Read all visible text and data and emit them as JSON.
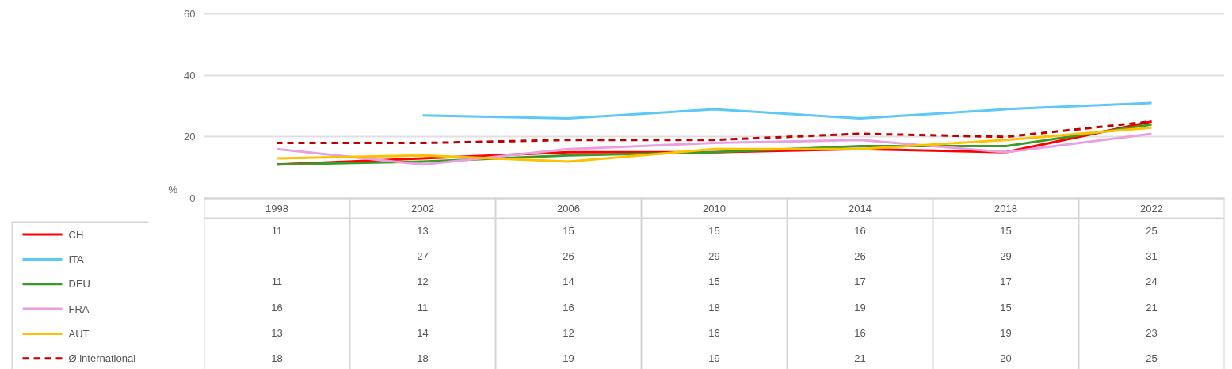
{
  "chart_data": {
    "type": "line",
    "ylabel": "%",
    "categories": [
      "1998",
      "2002",
      "2006",
      "2010",
      "2014",
      "2018",
      "2022"
    ],
    "ylim": [
      0,
      60
    ],
    "yticks": [
      0,
      20,
      40,
      60
    ],
    "grid": "y",
    "legend": "bottom",
    "data_labels": true,
    "marker": "none",
    "series": [
      {
        "name": "CH",
        "color": "#ff0000",
        "values": [
          11,
          13,
          15,
          15,
          16,
          15,
          25
        ]
      },
      {
        "name": "ITA",
        "color": "#5bc8f5",
        "values": [
          null,
          27,
          26,
          29,
          26,
          29,
          31
        ]
      },
      {
        "name": "DEU",
        "color": "#3a9a2a",
        "values": [
          11,
          12,
          14,
          15,
          17,
          17,
          24
        ]
      },
      {
        "name": "FRA",
        "color": "#e9a0e0",
        "values": [
          16,
          11,
          16,
          18,
          19,
          15,
          21
        ]
      },
      {
        "name": "AUT",
        "color": "#ffc000",
        "values": [
          13,
          14,
          12,
          16,
          16,
          19,
          23
        ]
      },
      {
        "name": "Ø international",
        "color": "#c00000",
        "values": [
          18,
          18,
          19,
          19,
          21,
          20,
          25
        ],
        "line_style": "dashed"
      }
    ]
  }
}
